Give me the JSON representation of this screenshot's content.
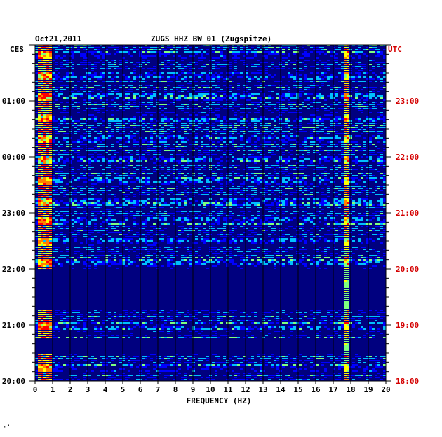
{
  "header": {
    "date": "Oct21,2011",
    "title": "ZUGS HHZ BW 01 (Zugspitze)",
    "left_tz": "CES",
    "right_tz": "UTC"
  },
  "footer_mark": "·ʼ",
  "colors": {
    "left_axis": "#000000",
    "right_axis": "#d40000",
    "grid": "#000000",
    "background_noise": "#0000a0"
  },
  "chart_data": {
    "type": "heatmap",
    "title": "ZUGS HHZ BW 01 (Zugspitze)",
    "xlabel": "FREQUENCY (HZ)",
    "x_range": [
      0,
      20
    ],
    "x_ticks": [
      "0",
      "1",
      "2",
      "3",
      "4",
      "5",
      "6",
      "7",
      "8",
      "9",
      "10",
      "11",
      "12",
      "13",
      "14",
      "15",
      "16",
      "17",
      "18",
      "19",
      "20"
    ],
    "left_time_ticks": [
      "01:00",
      "00:00",
      "23:00",
      "22:00",
      "21:00",
      "20:00"
    ],
    "right_time_ticks": [
      "23:00",
      "22:00",
      "21:00",
      "20:00",
      "19:00",
      "18:00"
    ],
    "time_span_hours": 6,
    "grid": true,
    "colormap": [
      "#00007f",
      "#0000ff",
      "#00bfff",
      "#7fff7f",
      "#ffff00",
      "#ff7f00",
      "#ff0000"
    ],
    "quiet_bands_hours_from_top": [
      [
        4.0,
        4.7
      ],
      [
        5.25,
        5.5
      ]
    ],
    "persistent_line_hz": 17.7,
    "energy_concentration_hz": [
      0.1,
      0.8
    ]
  }
}
